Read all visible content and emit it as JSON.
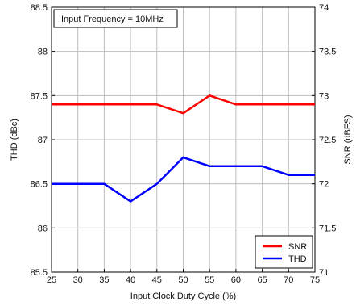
{
  "chart_data": {
    "type": "line",
    "annotation": "Input Frequency = 10MHz",
    "xlabel": "Input Clock Duty Cycle  (%)",
    "ylabel_left": "THD (dBc)",
    "ylabel_right": "SNR (dBFS)",
    "x": [
      25,
      30,
      35,
      40,
      45,
      50,
      55,
      60,
      65,
      70,
      75
    ],
    "xlim": [
      25,
      75
    ],
    "xticks": [
      "25",
      "30",
      "35",
      "40",
      "45",
      "50",
      "55",
      "60",
      "65",
      "70",
      "75"
    ],
    "ylim_left": [
      85.5,
      88.5
    ],
    "yticks_left": [
      "85.5",
      "86",
      "86.5",
      "87",
      "87.5",
      "88",
      "88.5"
    ],
    "ylim_right": [
      71,
      74
    ],
    "yticks_right": [
      "71",
      "71.5",
      "72",
      "72.5",
      "73",
      "73.5",
      "74"
    ],
    "grid": true,
    "legend_position": "bottom-right",
    "series": [
      {
        "name": "SNR",
        "axis": "right",
        "color": "#ff0000",
        "values": [
          72.9,
          72.9,
          72.9,
          72.9,
          72.9,
          72.8,
          73.0,
          72.9,
          72.9,
          72.9,
          72.9
        ]
      },
      {
        "name": "THD",
        "axis": "left",
        "color": "#0000ff",
        "values": [
          86.5,
          86.5,
          86.5,
          86.3,
          86.5,
          86.8,
          86.7,
          86.7,
          86.7,
          86.6,
          86.6
        ]
      }
    ]
  }
}
